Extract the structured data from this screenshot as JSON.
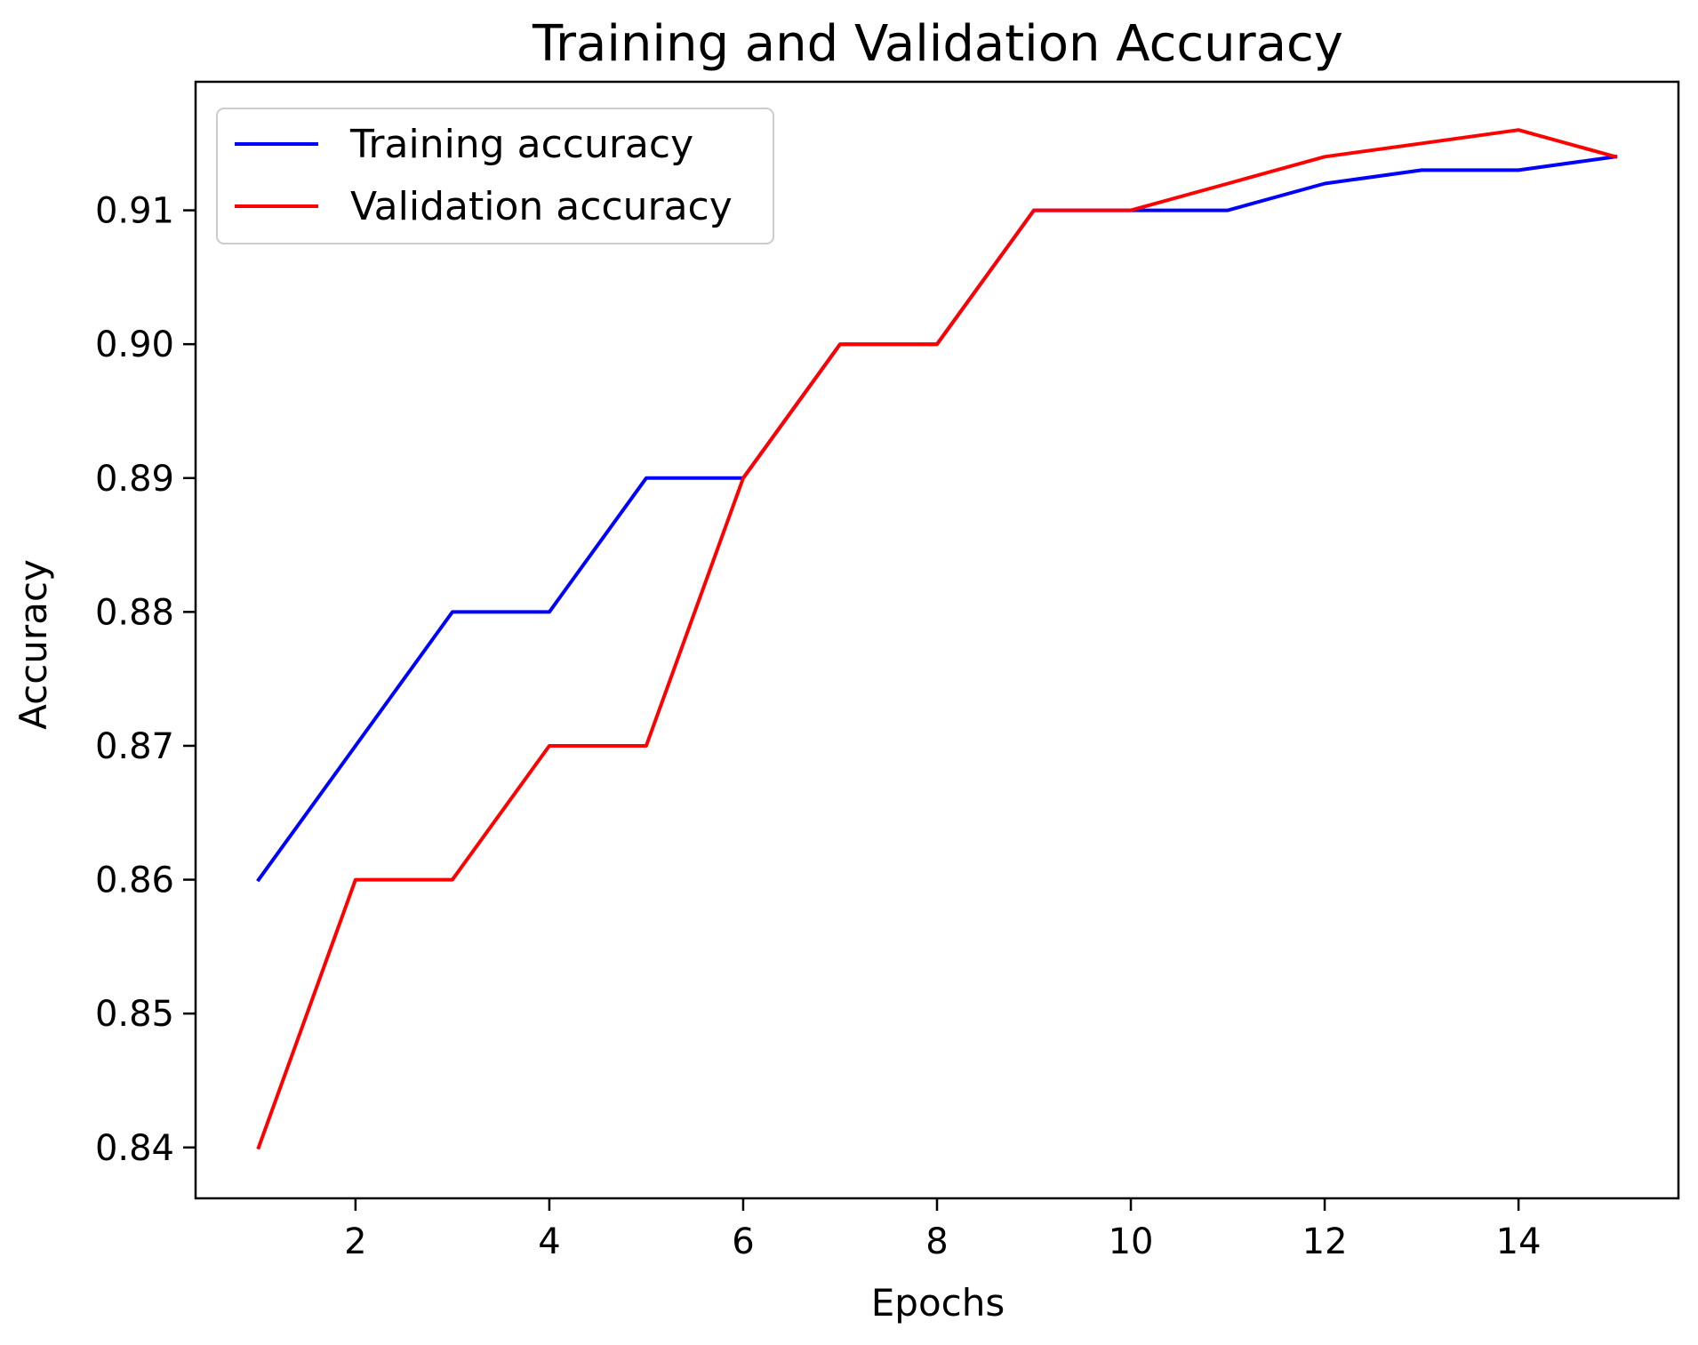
{
  "chart_data": {
    "type": "line",
    "title": "Training and Validation Accuracy",
    "xlabel": "Epochs",
    "ylabel": "Accuracy",
    "x": [
      1,
      2,
      3,
      4,
      5,
      6,
      7,
      8,
      9,
      10,
      11,
      12,
      13,
      14,
      15
    ],
    "xlim": [
      0.35,
      15.65
    ],
    "ylim": [
      0.8362,
      0.9196
    ],
    "xticks": [
      2,
      4,
      6,
      8,
      10,
      12,
      14
    ],
    "xtick_labels": [
      "2",
      "4",
      "6",
      "8",
      "10",
      "12",
      "14"
    ],
    "yticks": [
      0.84,
      0.85,
      0.86,
      0.87,
      0.88,
      0.89,
      0.9,
      0.91
    ],
    "ytick_labels": [
      "0.84",
      "0.85",
      "0.86",
      "0.87",
      "0.88",
      "0.89",
      "0.90",
      "0.91"
    ],
    "grid": false,
    "legend_position": "top-left",
    "series": [
      {
        "name": "Training accuracy",
        "color": "#0000ff",
        "values": [
          0.86,
          0.87,
          0.88,
          0.88,
          0.89,
          0.89,
          0.9,
          0.9,
          0.91,
          0.91,
          0.91,
          0.912,
          0.913,
          0.913,
          0.914
        ]
      },
      {
        "name": "Validation accuracy",
        "color": "#ff0000",
        "values": [
          0.84,
          0.86,
          0.86,
          0.87,
          0.87,
          0.89,
          0.9,
          0.9,
          0.91,
          0.91,
          0.912,
          0.914,
          0.915,
          0.916,
          0.914
        ]
      }
    ]
  }
}
